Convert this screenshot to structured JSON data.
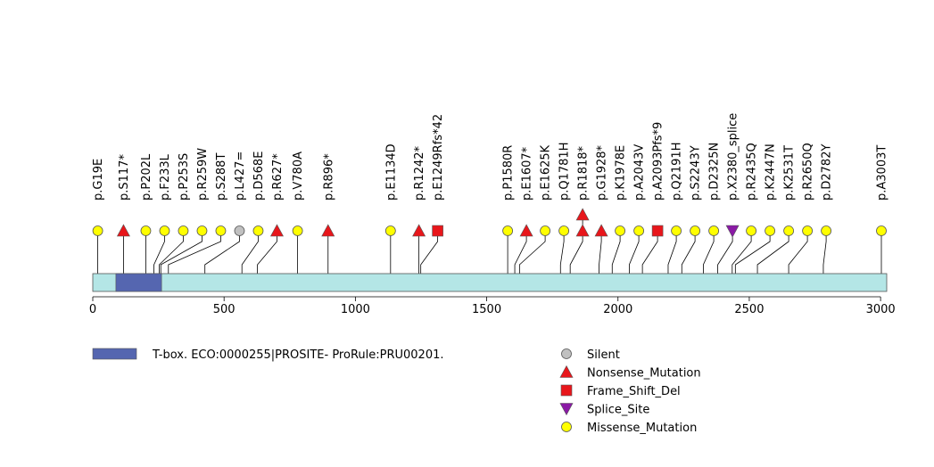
{
  "chart_data": {
    "type": "lollipop",
    "x_axis": {
      "min": 0,
      "max": 3003,
      "ticks": [
        0,
        500,
        1000,
        1500,
        2000,
        2500,
        3000
      ]
    },
    "protein_length": 3003,
    "domains": [
      {
        "name": "T-box. ECO:0000255|PROSITE- ProRule:PRU00201.",
        "start": 88,
        "end": 262,
        "color": "#5566b0"
      }
    ],
    "mutations": [
      {
        "label": "p.G19E",
        "pos": 19,
        "type": "Missense_Mutation",
        "stack": 1
      },
      {
        "label": "p.S117*",
        "pos": 117,
        "type": "Nonsense_Mutation",
        "stack": 1
      },
      {
        "label": "p.P202L",
        "pos": 202,
        "type": "Missense_Mutation",
        "stack": 1
      },
      {
        "label": "p.F233L",
        "pos": 233,
        "type": "Missense_Mutation",
        "stack": 1
      },
      {
        "label": "p.P253S",
        "pos": 253,
        "type": "Missense_Mutation",
        "stack": 1
      },
      {
        "label": "p.R259W",
        "pos": 259,
        "type": "Missense_Mutation",
        "stack": 1
      },
      {
        "label": "p.S288T",
        "pos": 288,
        "type": "Missense_Mutation",
        "stack": 1
      },
      {
        "label": "p.L427=",
        "pos": 427,
        "type": "Silent",
        "stack": 1
      },
      {
        "label": "p.D568E",
        "pos": 568,
        "type": "Missense_Mutation",
        "stack": 1
      },
      {
        "label": "p.R627*",
        "pos": 627,
        "type": "Nonsense_Mutation",
        "stack": 1
      },
      {
        "label": "p.V780A",
        "pos": 780,
        "type": "Missense_Mutation",
        "stack": 1
      },
      {
        "label": "p.R896*",
        "pos": 896,
        "type": "Nonsense_Mutation",
        "stack": 1
      },
      {
        "label": "p.E1134D",
        "pos": 1134,
        "type": "Missense_Mutation",
        "stack": 1
      },
      {
        "label": "p.R1242*",
        "pos": 1242,
        "type": "Nonsense_Mutation",
        "stack": 1
      },
      {
        "label": "p.E1249Rfs*42",
        "pos": 1249,
        "type": "Frame_Shift_Del",
        "stack": 1
      },
      {
        "label": "p.P1580R",
        "pos": 1580,
        "type": "Missense_Mutation",
        "stack": 1
      },
      {
        "label": "p.E1607*",
        "pos": 1607,
        "type": "Nonsense_Mutation",
        "stack": 1
      },
      {
        "label": "p.E1625K",
        "pos": 1625,
        "type": "Missense_Mutation",
        "stack": 1
      },
      {
        "label": "p.Q1781H",
        "pos": 1781,
        "type": "Missense_Mutation",
        "stack": 1
      },
      {
        "label": "p.R1818*",
        "pos": 1818,
        "type": "Nonsense_Mutation",
        "stack": 2
      },
      {
        "label": "p.G1928*",
        "pos": 1928,
        "type": "Nonsense_Mutation",
        "stack": 1
      },
      {
        "label": "p.K1978E",
        "pos": 1978,
        "type": "Missense_Mutation",
        "stack": 1
      },
      {
        "label": "p.A2043V",
        "pos": 2043,
        "type": "Missense_Mutation",
        "stack": 1
      },
      {
        "label": "p.A2093Pfs*9",
        "pos": 2093,
        "type": "Frame_Shift_Del",
        "stack": 1
      },
      {
        "label": "p.Q2191H",
        "pos": 2191,
        "type": "Missense_Mutation",
        "stack": 1
      },
      {
        "label": "p.S2243Y",
        "pos": 2243,
        "type": "Missense_Mutation",
        "stack": 1
      },
      {
        "label": "p.D2325N",
        "pos": 2325,
        "type": "Missense_Mutation",
        "stack": 1
      },
      {
        "label": "p.X2380_splice",
        "pos": 2380,
        "type": "Splice_Site",
        "stack": 1
      },
      {
        "label": "p.R2435Q",
        "pos": 2435,
        "type": "Missense_Mutation",
        "stack": 1
      },
      {
        "label": "p.K2447N",
        "pos": 2447,
        "type": "Missense_Mutation",
        "stack": 1
      },
      {
        "label": "p.K2531T",
        "pos": 2531,
        "type": "Missense_Mutation",
        "stack": 1
      },
      {
        "label": "p.R2650Q",
        "pos": 2650,
        "type": "Missense_Mutation",
        "stack": 1
      },
      {
        "label": "p.D2782Y",
        "pos": 2782,
        "type": "Missense_Mutation",
        "stack": 1
      },
      {
        "label": "p.A3003T",
        "pos": 3003,
        "type": "Missense_Mutation",
        "stack": 1
      }
    ],
    "legend": {
      "domain_label": "T-box. ECO:0000255|PROSITE- ProRule:PRU00201.",
      "types": [
        {
          "name": "Silent",
          "shape": "circle",
          "color": "#c0c0c0"
        },
        {
          "name": "Nonsense_Mutation",
          "shape": "triangle-up",
          "color": "#e8161b"
        },
        {
          "name": "Frame_Shift_Del",
          "shape": "square",
          "color": "#e8161b"
        },
        {
          "name": "Splice_Site",
          "shape": "triangle-down",
          "color": "#8a1aa5"
        },
        {
          "name": "Missense_Mutation",
          "shape": "circle",
          "color": "#ffff00"
        }
      ]
    },
    "colors": {
      "backbone": "#b4e6e6",
      "domain": "#5566b0"
    }
  }
}
